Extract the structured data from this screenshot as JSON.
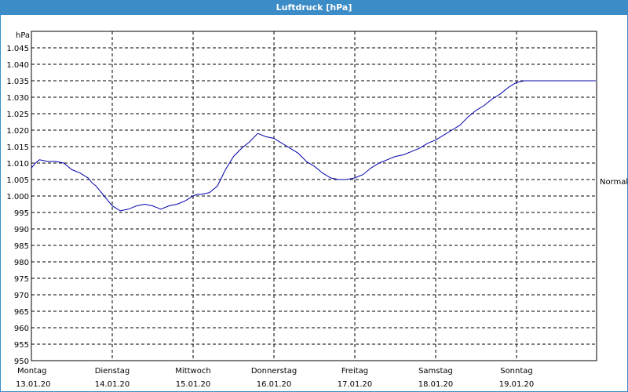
{
  "window": {
    "title": "Luftdruck [hPa]"
  },
  "chart_data": {
    "type": "line",
    "title": "Luftdruck [hPa]",
    "unit": "hPa",
    "ylim": [
      950,
      1050
    ],
    "yticks": [
      950,
      955,
      960,
      965,
      970,
      975,
      980,
      985,
      990,
      995,
      1000,
      1005,
      1010,
      1015,
      1020,
      1025,
      1030,
      1035,
      1040,
      1045
    ],
    "ytick_labels": [
      "950",
      "955",
      "960",
      "965",
      "970",
      "975",
      "980",
      "985",
      "990",
      "995",
      "1.000",
      "1.005",
      "1.010",
      "1.015",
      "1.020",
      "1.025",
      "1.030",
      "1.035",
      "1.040",
      "1.045"
    ],
    "x_days": [
      {
        "weekday": "Montag",
        "date": "13.01.20"
      },
      {
        "weekday": "Dienstag",
        "date": "14.01.20"
      },
      {
        "weekday": "Mittwoch",
        "date": "15.01.20"
      },
      {
        "weekday": "Donnerstag",
        "date": "16.01.20"
      },
      {
        "weekday": "Freitag",
        "date": "17.01.20"
      },
      {
        "weekday": "Samstag",
        "date": "18.01.20"
      },
      {
        "weekday": "Sonntag",
        "date": "19.01.20"
      }
    ],
    "reference_line": {
      "label": "Normal",
      "value": 1003
    },
    "grid": true,
    "line_color": "#0000aa",
    "series": [
      {
        "x_days": [
          0,
          0.05,
          0.1,
          0.2,
          0.3,
          0.4,
          0.5,
          0.55,
          0.6,
          0.7,
          0.75,
          0.8,
          0.9,
          0.95,
          1.0,
          1.1,
          1.2,
          1.25,
          1.3,
          1.4,
          1.5,
          1.55,
          1.6,
          1.7,
          1.8,
          1.9,
          2.0,
          2.05,
          2.1,
          2.2,
          2.3,
          2.4,
          2.5,
          2.6,
          2.7,
          2.8,
          2.9,
          3.0,
          3.1,
          3.2,
          3.3,
          3.4,
          3.5,
          3.6,
          3.7,
          3.8,
          3.9,
          4.0,
          4.1,
          4.2,
          4.3,
          4.4,
          4.5,
          4.6,
          4.7,
          4.8,
          4.9,
          5.0,
          5.1,
          5.2,
          5.3,
          5.4,
          5.5,
          5.6,
          5.7,
          5.8,
          5.9,
          6.0,
          6.1,
          6.2,
          6.3,
          6.4,
          6.5,
          6.6,
          6.7,
          6.8,
          6.9,
          6.98
        ],
        "values": [
          1008.5,
          1010,
          1011,
          1010.5,
          1010.5,
          1010,
          1008,
          1007.5,
          1007,
          1005.5,
          1004,
          1003,
          1000,
          998.5,
          997,
          995.5,
          996,
          996.5,
          997,
          997.5,
          997,
          996.5,
          996,
          997,
          997.5,
          998.5,
          1000,
          1000.5,
          1000.5,
          1001,
          1003,
          1008,
          1012,
          1014.5,
          1016.5,
          1019,
          1018,
          1017.5,
          1016,
          1014.5,
          1013,
          1010.5,
          1009,
          1007,
          1005.5,
          1005,
          1005,
          1005.5,
          1006.5,
          1008.5,
          1010,
          1011,
          1012,
          1012.5,
          1013.5,
          1014.5,
          1016,
          1017,
          1018.5,
          1020,
          1021.5,
          1024,
          1026,
          1027.5,
          1029.5,
          1031,
          1033,
          1034.5,
          1035,
          1035,
          1035,
          1035,
          1035,
          1035,
          1035,
          1035,
          1035,
          1035
        ]
      }
    ]
  }
}
